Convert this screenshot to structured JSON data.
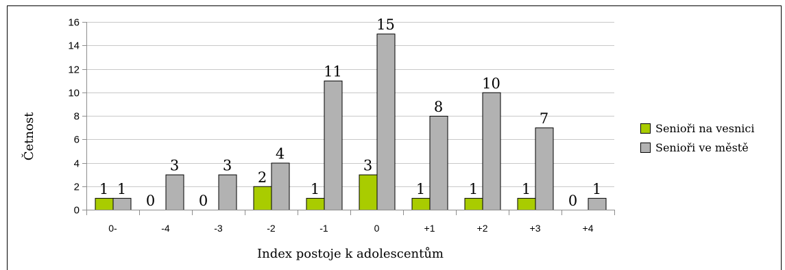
{
  "chart_data": {
    "type": "bar",
    "xlabel": "Index postoje k adolescentům",
    "ylabel": "Četnost",
    "ylim": [
      0,
      16
    ],
    "yticks": [
      0,
      2,
      4,
      6,
      8,
      10,
      12,
      14,
      16
    ],
    "grid": "horizontal",
    "legend_position": "right",
    "categories": [
      "0-",
      "-4",
      "-3",
      "-2",
      "-1",
      "0",
      "+1",
      "+2",
      "+3",
      "+4"
    ],
    "series": [
      {
        "name": "Senioři na vesnici",
        "color": "#a9cc00",
        "values": [
          1,
          0,
          0,
          2,
          1,
          3,
          1,
          1,
          1,
          0
        ]
      },
      {
        "name": "Senioři ve městě",
        "color": "#b2b2b2",
        "values": [
          1,
          3,
          3,
          4,
          11,
          15,
          8,
          10,
          7,
          1
        ]
      }
    ]
  }
}
